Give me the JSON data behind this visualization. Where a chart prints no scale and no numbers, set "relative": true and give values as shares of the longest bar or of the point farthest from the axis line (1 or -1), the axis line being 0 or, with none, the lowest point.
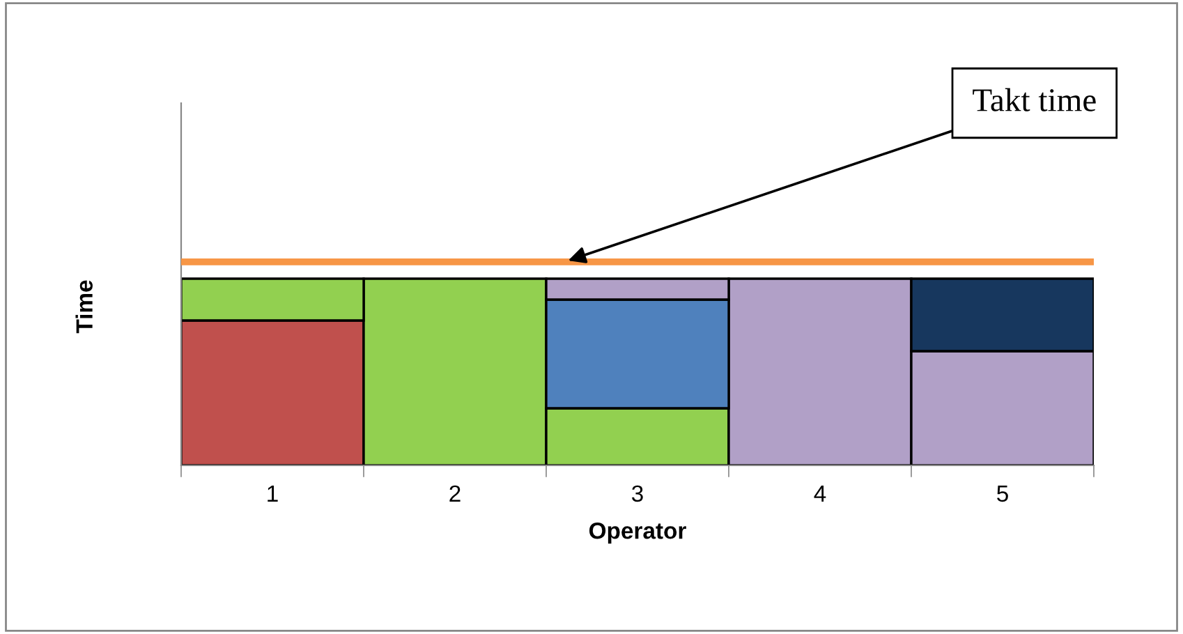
{
  "chart_data": {
    "type": "bar",
    "stacked": true,
    "relative": true,
    "xlabel": "Operator",
    "ylabel": "Time",
    "categories": [
      "1",
      "2",
      "3",
      "4",
      "5"
    ],
    "series": [
      {
        "colors": [
          "#c0504d",
          "#92d050",
          "#92d050",
          "#b1a0c7",
          "#b1a0c7"
        ],
        "values": [
          0.776,
          1,
          0.306,
          1,
          0.612
        ]
      },
      {
        "colors": [
          "#92d050",
          null,
          "#4f81bd",
          null,
          "#17375e"
        ],
        "values": [
          0.224,
          null,
          0.582,
          null,
          0.388
        ]
      },
      {
        "colors": [
          null,
          null,
          "#b1a0c7",
          null,
          null
        ],
        "values": [
          null,
          null,
          0.112,
          null,
          null
        ]
      }
    ],
    "ref_lines": [
      {
        "axis": "y",
        "value": 1.09,
        "label": "Takt time",
        "color": "#f79646"
      }
    ],
    "grid": false,
    "legend": false
  }
}
